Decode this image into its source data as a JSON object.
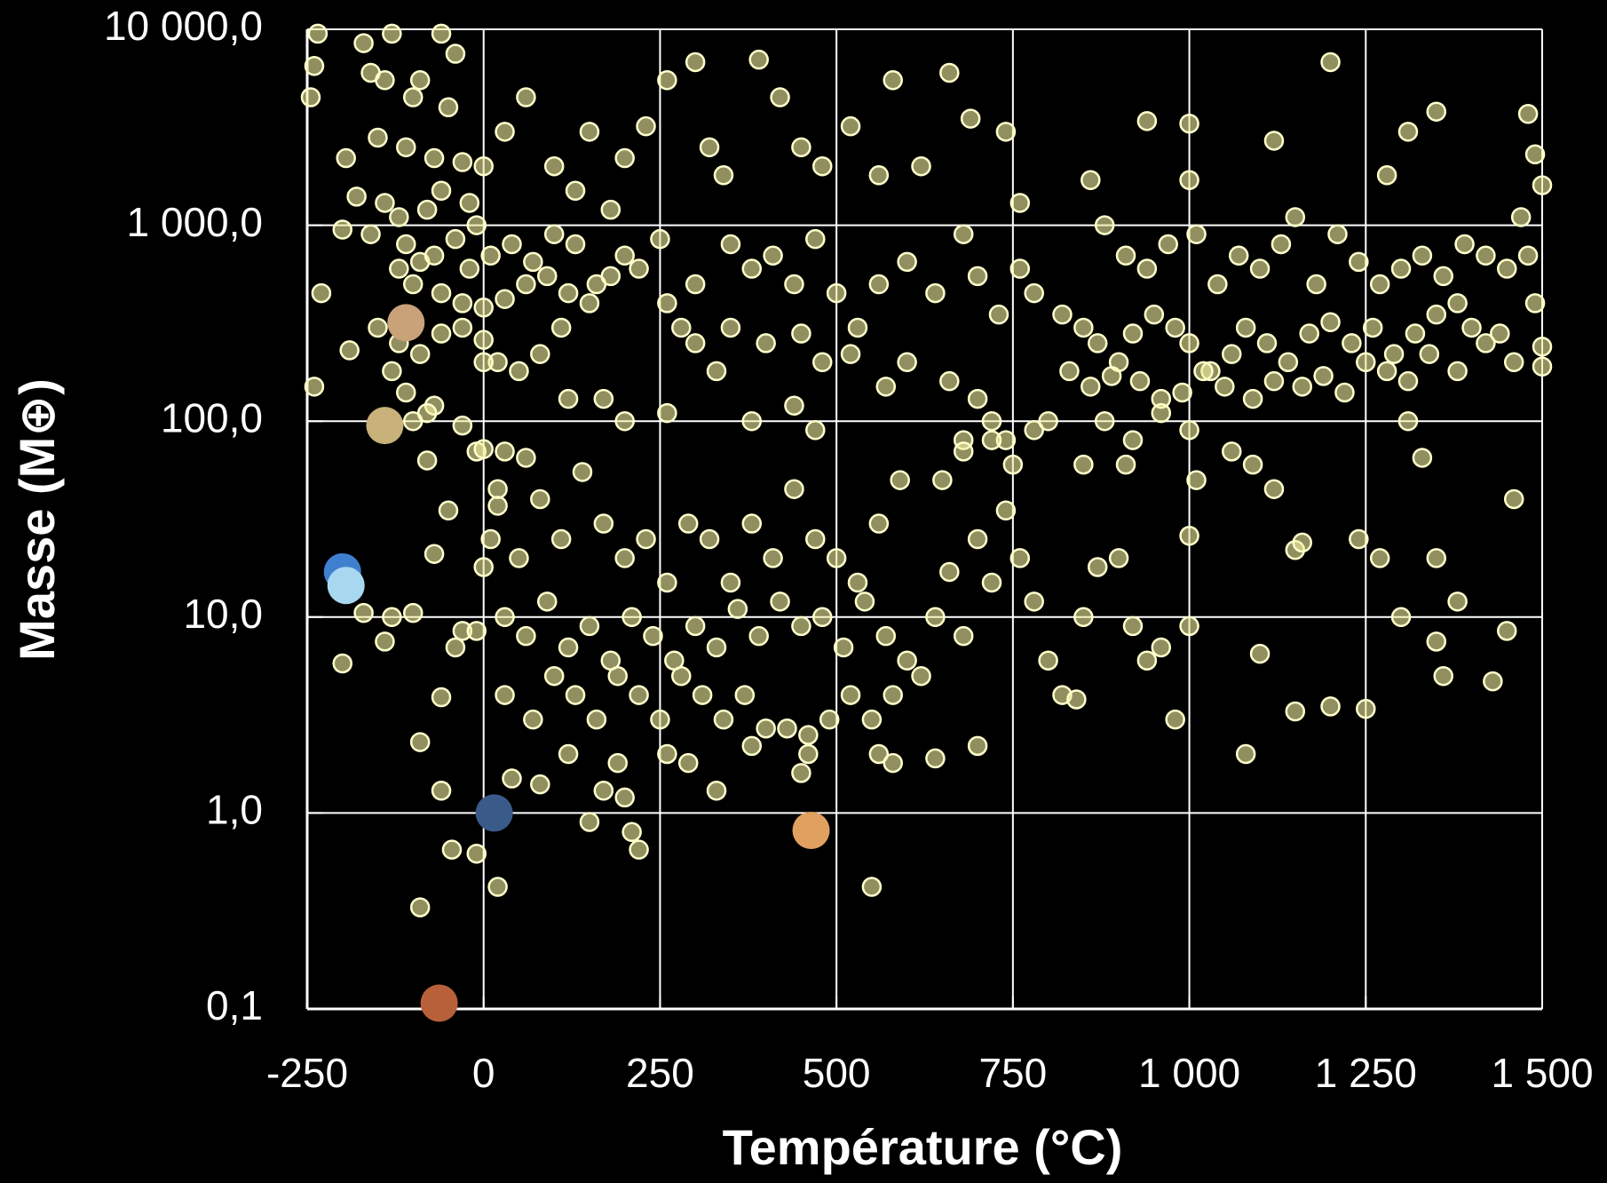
{
  "chart_data": {
    "type": "scatter",
    "x_label": "Température (°C)",
    "y_label": "Masse (M⊕)",
    "xlim": [
      -250,
      1500
    ],
    "xticks": [
      -250,
      0,
      250,
      500,
      750,
      {
        "value": 1000,
        "label": "1 000"
      },
      {
        "value": 1250,
        "label": "1 250"
      },
      {
        "value": 1500,
        "label": "1 500"
      }
    ],
    "ylim": [
      0.1,
      10000
    ],
    "yticks": [
      {
        "value": 0.1,
        "label": "0,1"
      },
      {
        "value": 1,
        "label": "1,0"
      },
      {
        "value": 10,
        "label": "10,0"
      },
      {
        "value": 100,
        "label": "100,0"
      },
      {
        "value": 1000,
        "label": "1 000,0"
      },
      {
        "value": 10000,
        "label": "10 000,0"
      }
    ],
    "log_y": true,
    "grid": true,
    "series": [
      {
        "color": "#f2eea0",
        "x": [
          -235,
          -240,
          -245,
          -170,
          -130,
          -60,
          -160,
          -140,
          -90,
          -40,
          -50,
          -100,
          -195,
          -150,
          -110,
          -70,
          -30,
          0,
          30,
          60,
          -180,
          -140,
          -120,
          -80,
          -60,
          -20,
          -10,
          -200,
          -160,
          -110,
          -90,
          -70,
          -40,
          -20,
          10,
          40,
          70,
          100,
          130,
          160,
          -120,
          -100,
          -60,
          -30,
          0,
          30,
          60,
          90,
          120,
          150,
          -150,
          -120,
          -90,
          -60,
          -30,
          0,
          20,
          50,
          80,
          110,
          -230,
          -240,
          -190,
          -130,
          -110,
          -70,
          -30,
          -10,
          30,
          60,
          -100,
          -80,
          0,
          180,
          200,
          220,
          250,
          260,
          280,
          300,
          100,
          130,
          150,
          180,
          200,
          230,
          260,
          300,
          320,
          340,
          390,
          420,
          450,
          480,
          520,
          560,
          580,
          620,
          660,
          690,
          350,
          380,
          410,
          440,
          470,
          500,
          530,
          560,
          600,
          640,
          680,
          700,
          730,
          760,
          350,
          400,
          450,
          480,
          520,
          570,
          120,
          170,
          200,
          260,
          300,
          330,
          380,
          440,
          470,
          600,
          660,
          720,
          740,
          760,
          740,
          780,
          700,
          680,
          820,
          850,
          870,
          900,
          920,
          950,
          980,
          1000,
          1030,
          1060,
          1080,
          1110,
          1140,
          1170,
          1200,
          1230,
          1260,
          1290,
          1320,
          1350,
          830,
          860,
          890,
          930,
          960,
          990,
          1020,
          1050,
          1090,
          1120,
          1160,
          1190,
          1220,
          1250,
          1280,
          1310,
          1340,
          1380,
          1420,
          1460,
          880,
          910,
          940,
          970,
          1010,
          1040,
          1070,
          1100,
          1130,
          1150,
          1180,
          1210,
          1240,
          1270,
          1300,
          1330,
          1360,
          1390,
          1420,
          1450,
          1480,
          1490,
          1500,
          1500,
          1470,
          1490,
          1480,
          1500,
          1400,
          1440,
          1380,
          1310,
          1350,
          1280,
          1200,
          1120,
          1000,
          940,
          860,
          1000,
          880,
          920,
          960,
          1000,
          1060,
          1090,
          1120,
          850,
          910,
          780,
          20,
          50,
          80,
          110,
          140,
          170,
          200,
          230,
          260,
          290,
          320,
          350,
          380,
          410,
          440,
          470,
          500,
          530,
          560,
          590,
          30,
          60,
          90,
          120,
          150,
          180,
          210,
          240,
          270,
          300,
          330,
          360,
          390,
          420,
          450,
          480,
          510,
          540,
          570,
          600,
          30,
          70,
          100,
          130,
          160,
          190,
          220,
          250,
          280,
          310,
          340,
          370,
          400,
          430,
          460,
          490,
          520,
          550,
          580,
          620,
          40,
          80,
          120,
          150,
          170,
          190,
          200,
          210,
          220,
          260,
          290,
          330,
          380,
          450,
          460,
          560,
          580,
          640,
          550,
          700,
          640,
          660,
          680,
          700,
          720,
          740,
          760,
          780,
          800,
          820,
          840,
          850,
          870,
          900,
          920,
          940,
          960,
          980,
          1000,
          1000,
          650,
          680,
          720,
          750,
          800,
          1010,
          1100,
          1080,
          1150,
          1160,
          1150,
          1200,
          1250,
          1240,
          1270,
          1300,
          1350,
          1360,
          1380,
          1430,
          1450,
          1460,
          1330,
          1310,
          1350,
          -200,
          -170,
          -140,
          -130,
          -100,
          -70,
          -90,
          -60,
          -40,
          -30,
          -10,
          0,
          10,
          20,
          -60,
          -45,
          -10,
          20,
          -90,
          -50,
          0,
          -80
        ],
        "values": [
          9500,
          6500,
          4500,
          8500,
          9500,
          9500,
          6000,
          5500,
          5500,
          7500,
          4000,
          4500,
          2200,
          2800,
          2500,
          2200,
          2100,
          2000,
          3000,
          4500,
          1400,
          1300,
          1100,
          1200,
          1500,
          1300,
          1000,
          950,
          900,
          800,
          650,
          700,
          850,
          600,
          700,
          800,
          650,
          900,
          800,
          500,
          600,
          500,
          450,
          400,
          380,
          420,
          500,
          550,
          450,
          400,
          300,
          250,
          220,
          280,
          300,
          260,
          200,
          180,
          220,
          300,
          450,
          150,
          230,
          180,
          140,
          120,
          95,
          70,
          70,
          65,
          100,
          110,
          200,
          550,
          700,
          600,
          850,
          400,
          300,
          500,
          2000,
          1500,
          3000,
          1200,
          2200,
          3200,
          5500,
          6800,
          2500,
          1800,
          7000,
          4500,
          2500,
          2000,
          3200,
          1800,
          5500,
          2000,
          6000,
          3500,
          800,
          600,
          700,
          500,
          850,
          450,
          300,
          500,
          650,
          450,
          900,
          550,
          350,
          600,
          300,
          250,
          280,
          200,
          220,
          150,
          130,
          130,
          100,
          110,
          250,
          180,
          100,
          120,
          90,
          200,
          160,
          100,
          80,
          1300,
          3000,
          450,
          130,
          80,
          350,
          300,
          250,
          200,
          280,
          350,
          300,
          250,
          180,
          220,
          300,
          250,
          200,
          280,
          320,
          250,
          300,
          220,
          280,
          350,
          180,
          150,
          170,
          160,
          130,
          140,
          180,
          150,
          130,
          160,
          150,
          170,
          140,
          200,
          180,
          160,
          220,
          180,
          250,
          200,
          1000,
          700,
          600,
          800,
          900,
          500,
          700,
          600,
          800,
          1100,
          500,
          900,
          650,
          500,
          600,
          700,
          550,
          800,
          700,
          600,
          700,
          400,
          240,
          190,
          1100,
          2300,
          3700,
          1600,
          300,
          280,
          400,
          3000,
          3800,
          1800,
          6800,
          2700,
          3300,
          3400,
          1700,
          1700,
          100,
          80,
          110,
          90,
          70,
          60,
          45,
          60,
          60,
          90,
          45,
          20,
          40,
          25,
          55,
          30,
          20,
          25,
          15,
          30,
          25,
          15,
          30,
          20,
          45,
          25,
          20,
          15,
          30,
          50,
          10,
          8,
          12,
          7,
          9,
          6,
          10,
          8,
          6,
          9,
          7,
          11,
          8,
          12,
          9,
          10,
          7,
          12,
          8,
          6,
          4,
          3,
          5,
          4,
          3,
          5,
          4,
          3,
          5,
          4,
          3,
          4,
          2.7,
          2.7,
          2.5,
          3,
          4,
          3,
          4,
          5,
          1.5,
          1.4,
          2,
          0.9,
          1.3,
          1.8,
          1.2,
          0.8,
          0.65,
          2,
          1.8,
          1.3,
          2.2,
          1.6,
          2,
          2,
          1.8,
          1.9,
          0.42,
          2.2,
          10,
          17,
          8,
          25,
          15,
          35,
          20,
          12,
          6,
          4,
          3.8,
          10,
          18,
          20,
          9,
          6,
          7,
          3,
          9,
          26,
          50,
          70,
          80,
          60,
          100,
          50,
          6.5,
          2,
          22,
          24,
          3.3,
          3.5,
          3.4,
          25,
          20,
          10,
          20,
          5,
          12,
          4.7,
          8.5,
          40,
          65,
          100,
          7.5,
          5.8,
          10.5,
          7.5,
          10,
          10.5,
          21,
          2.3,
          3.9,
          7,
          8.5,
          8.5,
          18,
          25,
          37,
          1.3,
          0.65,
          0.62,
          0.42,
          0.33,
          35,
          72,
          63
        ]
      },
      {
        "color": "#c9a27a",
        "x": [
          -110
        ],
        "values": [
          318
        ]
      },
      {
        "color": "#c8b27a",
        "x": [
          -140
        ],
        "values": [
          95
        ]
      },
      {
        "color": "#3f7fcf",
        "x": [
          -200
        ],
        "values": [
          17
        ]
      },
      {
        "color": "#a8d8f0",
        "x": [
          -195
        ],
        "values": [
          14.5
        ]
      },
      {
        "color": "#3a5a8a",
        "x": [
          15
        ],
        "values": [
          1
        ]
      },
      {
        "color": "#e0a060",
        "x": [
          464
        ],
        "values": [
          0.815
        ]
      },
      {
        "color": "#b8603a",
        "x": [
          -63
        ],
        "values": [
          0.107
        ]
      }
    ]
  }
}
